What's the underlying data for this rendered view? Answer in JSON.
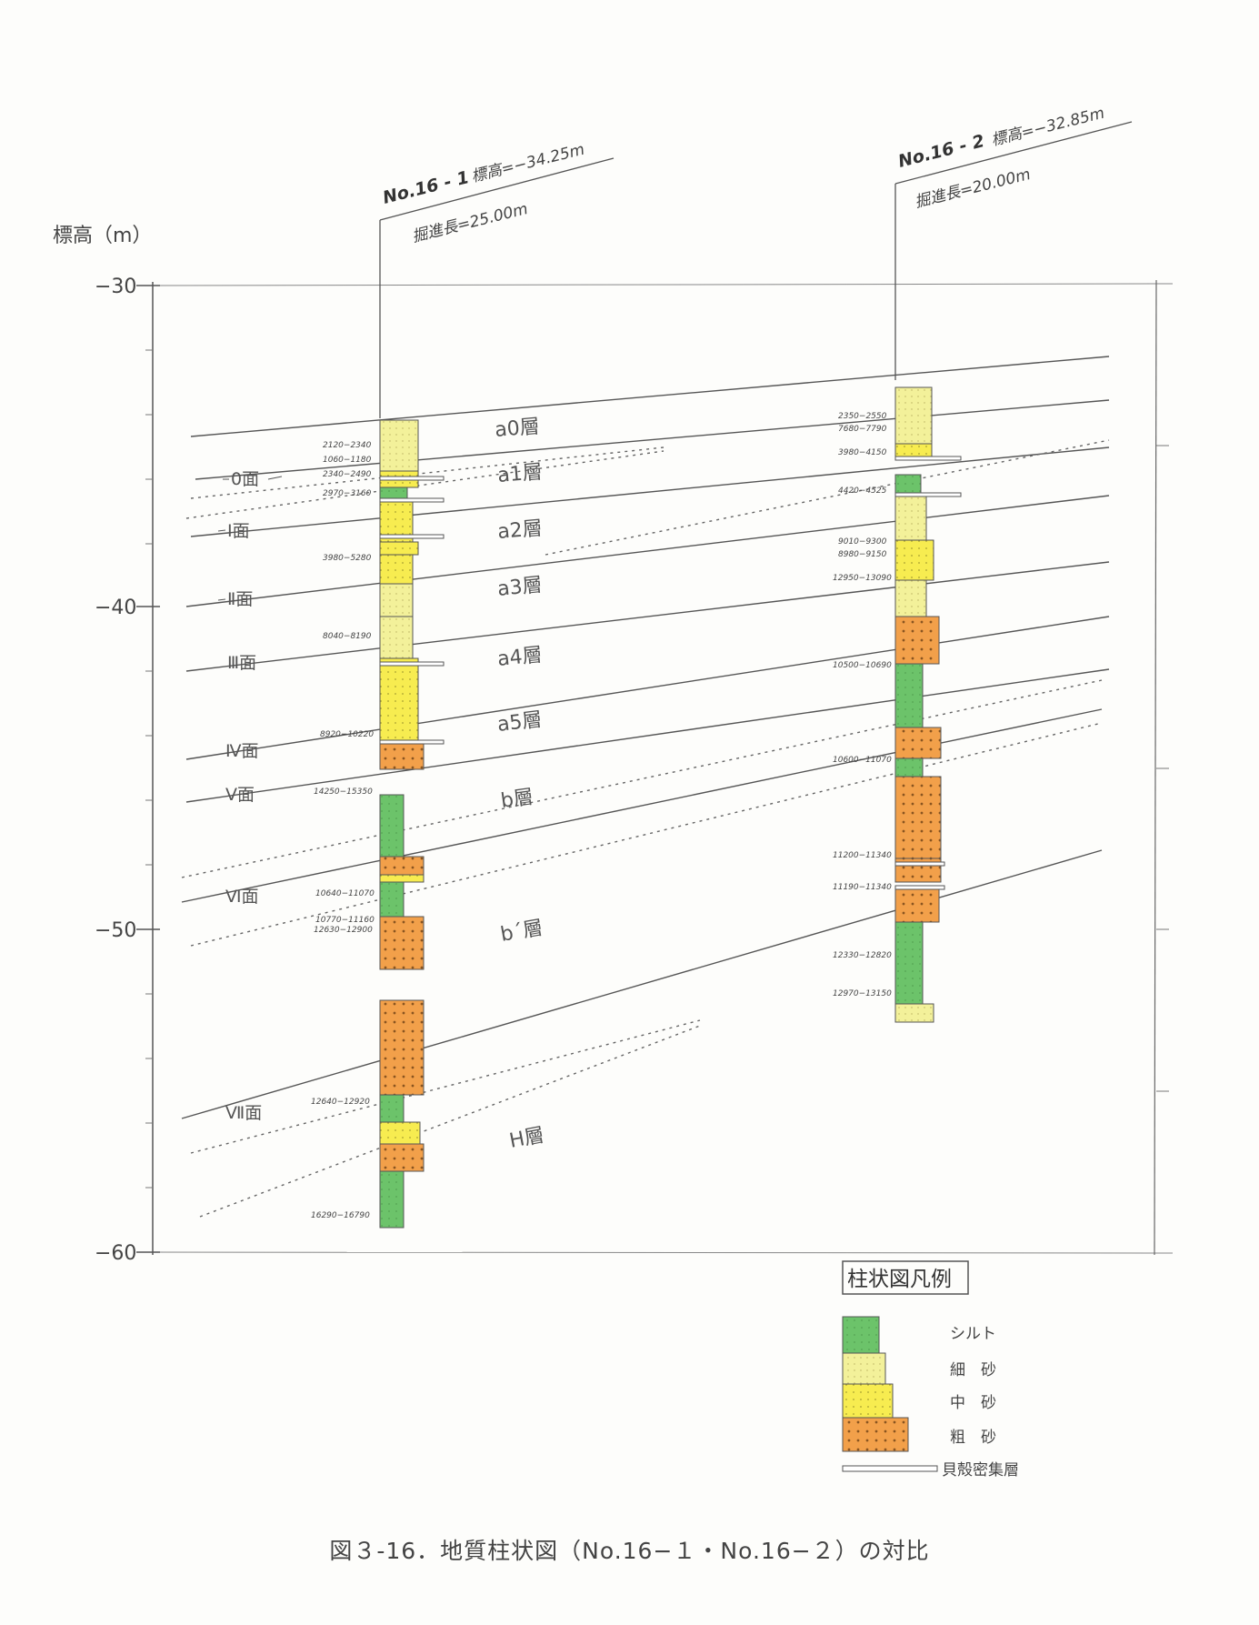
{
  "y_axis": {
    "label": "標高（m）",
    "ticks": [
      {
        "value": -30,
        "label": "−30"
      },
      {
        "value": -40,
        "label": "−40"
      },
      {
        "value": -50,
        "label": "−50"
      },
      {
        "value": -60,
        "label": "−60"
      }
    ]
  },
  "boreholes": [
    {
      "name": "No.16 - 1",
      "elevation_label": "標高=−34.25m",
      "depth_label": "掘進長=25.00m"
    },
    {
      "name": "No.16 - 2",
      "elevation_label": "標高=−32.85m",
      "depth_label": "掘進長=20.00m"
    }
  ],
  "layers": [
    "a0層",
    "a1層",
    "a2層",
    "a3層",
    "a4層",
    "a5層",
    "b層",
    "b´層",
    "H層"
  ],
  "faces": [
    "0面",
    "Ⅰ面",
    "Ⅱ面",
    "Ⅲ面",
    "Ⅳ面",
    "Ⅴ面",
    "Ⅵ面",
    "Ⅶ面"
  ],
  "dates_1": [
    "2120−2340",
    "1060−1180",
    "2340−2490",
    "2970−3160",
    "3980−5280",
    "8040−8190",
    "8920−10220",
    "14250−15350",
    "10640−11070",
    "10770−11160",
    "12630−12900",
    "12640−12920",
    "16290−16790"
  ],
  "dates_2": [
    "2350−2550",
    "7680−7790",
    "3980−4150",
    "4420−4525",
    "9010−9300",
    "8980−9150",
    "12950−13090",
    "10500−10690",
    "10600−11070",
    "11200−11340",
    "11190−11340",
    "12330−12820",
    "12970−13150"
  ],
  "legend": {
    "title": "柱状図凡例",
    "items": [
      {
        "label": "シルト",
        "color": "#6cc36a"
      },
      {
        "label": "細　砂",
        "color": "#f3f19a"
      },
      {
        "label": "中　砂",
        "color": "#f7ec50"
      },
      {
        "label": "粗　砂",
        "color": "#f2a04a"
      },
      {
        "label": "貝殻密集層",
        "color": "#ffffff"
      }
    ]
  },
  "caption": "図３-16．地質柱状図（No.16−１・No.16−２）の対比"
}
